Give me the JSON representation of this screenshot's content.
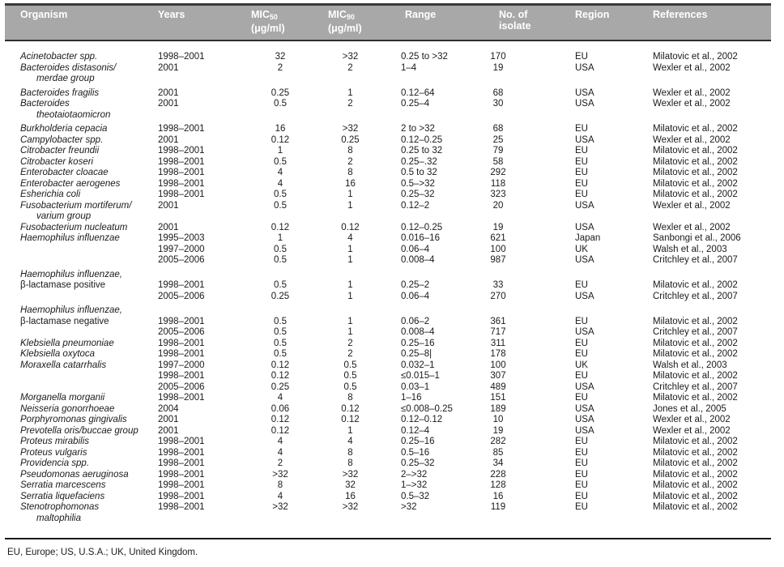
{
  "colors": {
    "header_bg": "#a8a8a8",
    "header_text": "#ffffff",
    "rule": "#1a1a1a",
    "body_text": "#1a1a1a"
  },
  "footnote": "EU, Europe; US, U.S.A.; UK, United Kingdom.",
  "table": {
    "columns": [
      {
        "id": "organism",
        "label": "Organism"
      },
      {
        "id": "years",
        "label": "Years"
      },
      {
        "id": "mic50",
        "label": "MIC",
        "sub": "50",
        "line2": "(μg/ml)"
      },
      {
        "id": "mic90",
        "label": "MIC",
        "sub": "90",
        "line2": "(μg/ml)"
      },
      {
        "id": "range",
        "label": "Range"
      },
      {
        "id": "isolates",
        "label": "No. of",
        "line2": "isolate"
      },
      {
        "id": "region",
        "label": "Region"
      },
      {
        "id": "references",
        "label": "References"
      }
    ],
    "rows": [
      {
        "org": "Acinetobacter spp.",
        "years": "1998–2001",
        "mic50": "32",
        "mic90": ">32",
        "range": "0.25 to >32",
        "n": "170",
        "region": "EU",
        "ref": "Milatovic et al., 2002"
      },
      {
        "org": "Bacteroides distasonis/",
        "years": "2001",
        "mic50": "2",
        "mic90": "2",
        "range": "1–4",
        "n": "19",
        "region": "USA",
        "ref": "Wexler et al., 2002"
      },
      {
        "org": "merdae group",
        "indent": true
      },
      {
        "org": "Bacteroides fragilis",
        "gap": true,
        "years": "2001",
        "mic50": "0.25",
        "mic90": "1",
        "range": "0.12–64",
        "n": "68",
        "region": "USA",
        "ref": "Wexler et al., 2002"
      },
      {
        "org": "Bacteroides",
        "years": "2001",
        "mic50": "0.5",
        "mic90": "2",
        "range": "0.25–4",
        "n": "30",
        "region": "USA",
        "ref": "Wexler et al., 2002"
      },
      {
        "org": "theotaiotaomicron",
        "indent": true
      },
      {
        "org": "Burkholderia cepacia",
        "gap": true,
        "years": "1998–2001",
        "mic50": "16",
        "mic90": ">32",
        "range": "2 to >32",
        "n": "68",
        "region": "EU",
        "ref": "Milatovic et al., 2002"
      },
      {
        "org": "Campylobacter spp.",
        "years": "2001",
        "mic50": "0.12",
        "mic90": "0.25",
        "range": "0.12–0.25",
        "n": "25",
        "region": "USA",
        "ref": "Wexler et al., 2002"
      },
      {
        "org": "Citrobacter freundii",
        "years": "1998–2001",
        "mic50": "1",
        "mic90": "8",
        "range": "0.25 to 32",
        "n": "79",
        "region": "EU",
        "ref": "Milatovic et al., 2002"
      },
      {
        "org": "Citrobacter koseri",
        "years": "1998–2001",
        "mic50": "0.5",
        "mic90": "2",
        "range": "0.25–.32",
        "n": "58",
        "region": "EU",
        "ref": "Milatovic et al., 2002"
      },
      {
        "org": "Enterobacter cloacae",
        "years": "1998–2001",
        "mic50": "4",
        "mic90": "8",
        "range": "0.5 to 32",
        "n": "292",
        "region": "EU",
        "ref": "Milatovic et al., 2002"
      },
      {
        "org": "Enterobacter aerogenes",
        "years": "1998–2001",
        "mic50": "4",
        "mic90": "16",
        "range": "0.5–>32",
        "n": "118",
        "region": "EU",
        "ref": "Milatovic et al., 2002"
      },
      {
        "org": "Esherichia coli",
        "years": "1998–2001",
        "mic50": "0.5",
        "mic90": "1",
        "range": "0.25–32",
        "n": "323",
        "region": "EU",
        "ref": "Milatovic et al., 2002"
      },
      {
        "org": "Fusobacterium mortiferum/",
        "years": "2001",
        "mic50": "0.5",
        "mic90": "1",
        "range": "0.12–2",
        "n": "20",
        "region": "USA",
        "ref": "Wexler et al., 2002"
      },
      {
        "org": "varium group",
        "indent": true
      },
      {
        "org": "Fusobacterium nucleatum",
        "years": "2001",
        "mic50": "0.12",
        "mic90": "0.12",
        "range": "0.12–0.25",
        "n": "19",
        "region": "USA",
        "ref": "Wexler et al., 2002"
      },
      {
        "org": "Haemophilus influenzae",
        "years": "1995–2003",
        "mic50": "1",
        "mic90": "4",
        "range": "0.016–16",
        "n": "621",
        "region": "Japan",
        "ref": "Sanbongi et al., 2006"
      },
      {
        "years": "1997–2000",
        "mic50": "0.5",
        "mic90": "1",
        "range": "0.06–4",
        "n": "100",
        "region": "UK",
        "ref": "Walsh et al., 2003"
      },
      {
        "years": "2005–2006",
        "mic50": "0.5",
        "mic90": "1",
        "range": "0.008–4",
        "n": "987",
        "region": "USA",
        "ref": "Critchley et al., 2007"
      },
      {
        "org": "Haemophilus influenzae,",
        "gap": true
      },
      {
        "org": "β-lactamase positive",
        "roman": true,
        "years": "1998–2001",
        "mic50": "0.5",
        "mic90": "1",
        "range": "0.25–2",
        "n": "33",
        "region": "EU",
        "ref": "Milatovic et al., 2002"
      },
      {
        "years": "2005–2006",
        "mic50": "0.25",
        "mic90": "1",
        "range": "0.06–4",
        "n": "270",
        "region": "USA",
        "ref": "Critchley et al., 2007"
      },
      {
        "org": "Haemophilus influenzae,",
        "gap": true
      },
      {
        "org": "β-lactamase negative",
        "roman": true,
        "years": "1998–2001",
        "mic50": "0.5",
        "mic90": "1",
        "range": "0.06–2",
        "n": "361",
        "region": "EU",
        "ref": "Milatovic et al., 2002"
      },
      {
        "years": "2005–2006",
        "mic50": "0.5",
        "mic90": "1",
        "range": "0.008–4",
        "n": "717",
        "region": "USA",
        "ref": "Critchley et al., 2007"
      },
      {
        "org": "Klebsiella pneumoniae",
        "years": "1998–2001",
        "mic50": "0.5",
        "mic90": "2",
        "range": "0.25–16",
        "n": "311",
        "region": "EU",
        "ref": "Milatovic et al., 2002"
      },
      {
        "org": "Klebsiella oxytoca",
        "years": "1998–2001",
        "mic50": "0.5",
        "mic90": "2",
        "range": "0.25–8|",
        "n": "178",
        "region": "EU",
        "ref": "Milatovic et al., 2002"
      },
      {
        "org": "Moraxella catarrhalis",
        "years": "1997–2000",
        "mic50": "0.12",
        "mic90": "0.5",
        "range": "0.032–1",
        "n": "100",
        "region": "UK",
        "ref": "Walsh et al., 2003"
      },
      {
        "years": "1998–2001",
        "mic50": "0.12",
        "mic90": "0.5",
        "range": "≤0.015–1",
        "n": "307",
        "region": "EU",
        "ref": "Milatovic et al., 2002"
      },
      {
        "years": "2005–2006",
        "mic50": "0.25",
        "mic90": "0.5",
        "range": "0.03–1",
        "n": "489",
        "region": "USA",
        "ref": "Critchley et al., 2007"
      },
      {
        "org": "Morganella morganii",
        "years": "1998–2001",
        "mic50": "4",
        "mic90": "8",
        "range": "1–16",
        "n": "151",
        "region": "EU",
        "ref": "Milatovic et al., 2002"
      },
      {
        "org": "Neisseria gonorrhoeae",
        "years": "2004",
        "mic50": "0.06",
        "mic90": "0.12",
        "range": "≤0.008–0.25",
        "n": "189",
        "region": "USA",
        "ref": "Jones et al., 2005"
      },
      {
        "org": "Porphyromonas gingivalis",
        "years": "2001",
        "mic50": "0.12",
        "mic90": "0.12",
        "range": "0.12–0.12",
        "n": "10",
        "region": "USA",
        "ref": "Wexler et al., 2002"
      },
      {
        "org": "Prevotella oris/buccae group",
        "years": "2001",
        "mic50": "0.12",
        "mic90": "1",
        "range": "0.12–4",
        "n": "19",
        "region": "USA",
        "ref": "Wexler et al., 2002"
      },
      {
        "org": "Proteus mirabilis",
        "years": "1998–2001",
        "mic50": "4",
        "mic90": "4",
        "range": "0.25–16",
        "n": "282",
        "region": "EU",
        "ref": "Milatovic et al., 2002"
      },
      {
        "org": "Proteus vulgaris",
        "years": "1998–2001",
        "mic50": "4",
        "mic90": "8",
        "range": "0.5–16",
        "n": "85",
        "region": "EU",
        "ref": "Milatovic et al., 2002"
      },
      {
        "org": "Providencia spp.",
        "years": "1998–2001",
        "mic50": "2",
        "mic90": "8",
        "range": "0.25–32",
        "n": "34",
        "region": "EU",
        "ref": "Milatovic et al., 2002"
      },
      {
        "org": "Pseudomonas aeruginosa",
        "years": "1998–2001",
        "mic50": ">32",
        "mic90": ">32",
        "range": "2–>32",
        "n": "228",
        "region": "EU",
        "ref": "Milatovic et al., 2002"
      },
      {
        "org": "Serratia marcescens",
        "years": "1998–2001",
        "mic50": "8",
        "mic90": "32",
        "range": "1–>32",
        "n": "128",
        "region": "EU",
        "ref": "Milatovic et al., 2002"
      },
      {
        "org": "Serratia liquefaciens",
        "years": "1998–2001",
        "mic50": "4",
        "mic90": "16",
        "range": "0.5–32",
        "n": "16",
        "region": "EU",
        "ref": "Milatovic et al., 2002"
      },
      {
        "org": "Stenotrophomonas",
        "years": "1998–2001",
        "mic50": ">32",
        "mic90": ">32",
        "range": ">32",
        "n": "119",
        "region": "EU",
        "ref": "Milatovic et al., 2002"
      },
      {
        "org": "maltophilia",
        "indent": true
      }
    ]
  }
}
